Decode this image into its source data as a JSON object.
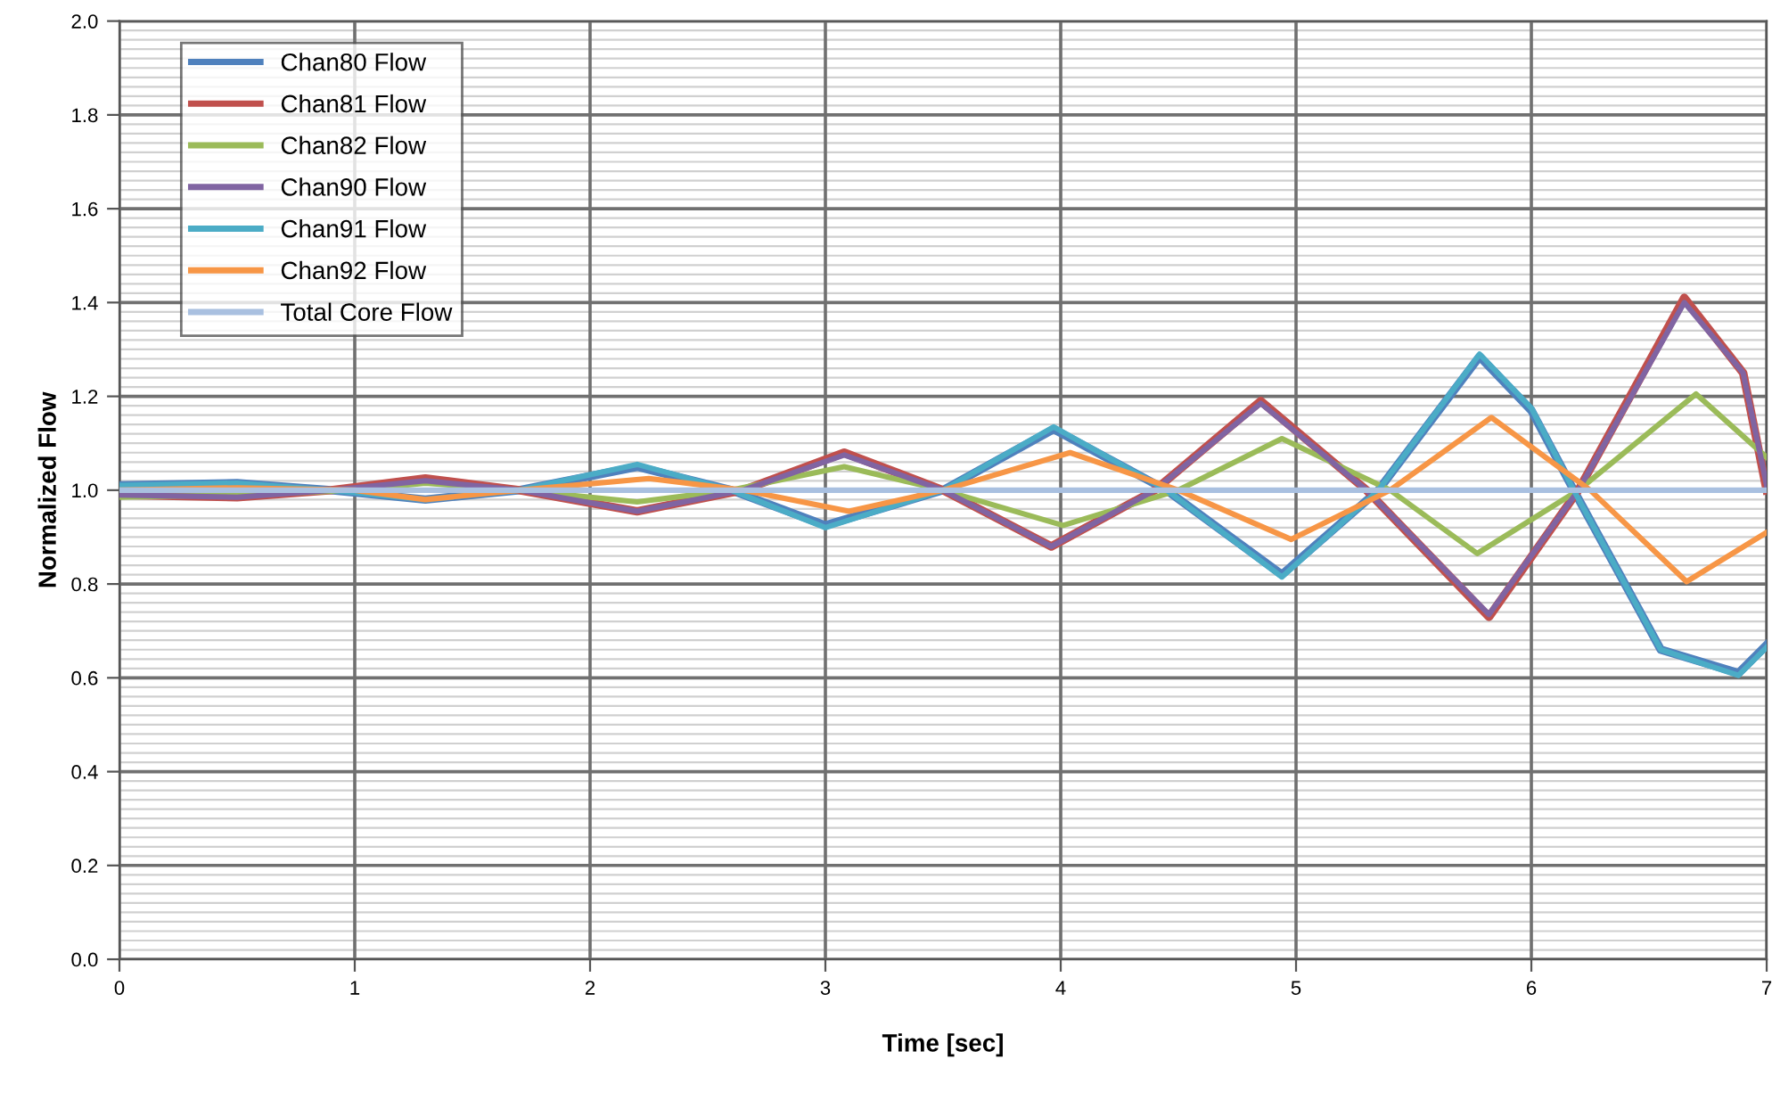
{
  "chart_data": {
    "type": "line",
    "xlabel": "Time [sec]",
    "ylabel": "Normalized Flow",
    "xlim": [
      0,
      7
    ],
    "ylim": [
      0.0,
      2.0
    ],
    "xticks": [
      0,
      1,
      2,
      3,
      4,
      5,
      6,
      7
    ],
    "yticks": [
      {
        "value": 0,
        "label": "0.0"
      },
      0.2,
      0.4,
      0.6,
      0.8,
      {
        "value": 1,
        "label": "1.0"
      },
      1.2,
      1.4,
      1.6,
      1.8,
      {
        "value": 2,
        "label": "2.0"
      }
    ],
    "grid": true,
    "legend": "top left",
    "line_style": "solid",
    "marker": "none",
    "series": [
      {
        "name": "Chan80 Flow",
        "color": "#4f81bd",
        "x": [
          0,
          0.5,
          0.9,
          1.3,
          1.7,
          2.2,
          2.6,
          3.0,
          3.5,
          3.97,
          4.45,
          4.94,
          5.35,
          5.78,
          6.0,
          6.18,
          6.55,
          6.88,
          7.0
        ],
        "values": [
          1.01,
          1.015,
          1.0,
          0.98,
          1.0,
          1.05,
          1.0,
          0.925,
          1.0,
          1.13,
          1.0,
          0.82,
          1.0,
          1.285,
          1.17,
          1.0,
          0.66,
          0.61,
          0.67
        ]
      },
      {
        "name": "Chan81 Flow",
        "color": "#c0504d",
        "x": [
          0,
          0.5,
          0.9,
          1.3,
          1.7,
          2.2,
          2.65,
          3.08,
          3.5,
          3.96,
          4.4,
          4.85,
          5.3,
          5.82,
          6.2,
          6.65,
          6.9,
          7.0
        ],
        "values": [
          0.99,
          0.985,
          1.0,
          1.025,
          1.0,
          0.955,
          1.0,
          1.08,
          1.0,
          0.88,
          1.0,
          1.19,
          1.0,
          0.73,
          1.0,
          1.41,
          1.25,
          1.0
        ]
      },
      {
        "name": "Chan82 Flow",
        "color": "#9bbb59",
        "x": [
          0,
          0.5,
          1.0,
          1.3,
          1.7,
          2.2,
          2.6,
          3.08,
          3.5,
          4.01,
          4.5,
          4.94,
          5.4,
          5.77,
          6.2,
          6.7,
          7.0
        ],
        "values": [
          0.985,
          0.99,
          1.0,
          1.015,
          1.0,
          0.975,
          1.0,
          1.05,
          1.0,
          0.925,
          1.0,
          1.11,
          1.0,
          0.865,
          1.0,
          1.205,
          1.07
        ]
      },
      {
        "name": "Chan90 Flow",
        "color": "#8064a2",
        "x": [
          0,
          0.5,
          0.9,
          1.3,
          1.7,
          2.2,
          2.65,
          3.08,
          3.5,
          3.96,
          4.4,
          4.85,
          5.3,
          5.82,
          6.2,
          6.65,
          6.9,
          7.0
        ],
        "values": [
          0.99,
          0.985,
          1.0,
          1.02,
          1.0,
          0.955,
          1.0,
          1.075,
          1.0,
          0.88,
          1.0,
          1.185,
          1.0,
          0.735,
          1.0,
          1.4,
          1.25,
          1.01
        ]
      },
      {
        "name": "Chan91 Flow",
        "color": "#4bacc6",
        "x": [
          0,
          0.5,
          0.9,
          1.3,
          1.7,
          2.2,
          2.6,
          3.0,
          3.5,
          3.97,
          4.45,
          4.94,
          5.35,
          5.78,
          6.0,
          6.18,
          6.55,
          6.88,
          7.0
        ],
        "values": [
          1.01,
          1.015,
          1.0,
          0.98,
          1.0,
          1.055,
          1.0,
          0.92,
          1.0,
          1.135,
          1.0,
          0.815,
          1.0,
          1.29,
          1.175,
          1.0,
          0.66,
          0.605,
          0.665
        ]
      },
      {
        "name": "Chan92 Flow",
        "color": "#f79646",
        "x": [
          0,
          0.5,
          1.0,
          1.3,
          1.7,
          2.25,
          2.65,
          3.1,
          3.5,
          4.04,
          4.5,
          4.98,
          5.4,
          5.83,
          6.25,
          6.66,
          7.0
        ],
        "values": [
          1.0,
          1.005,
          1.0,
          0.98,
          1.0,
          1.025,
          1.0,
          0.955,
          1.0,
          1.08,
          1.0,
          0.895,
          1.0,
          1.155,
          1.0,
          0.805,
          0.91
        ]
      },
      {
        "name": "Total Core Flow",
        "color": "#a9c0e0",
        "x": [
          0,
          3.5,
          7.0
        ],
        "values": [
          1.0,
          1.0,
          1.0
        ]
      }
    ]
  }
}
